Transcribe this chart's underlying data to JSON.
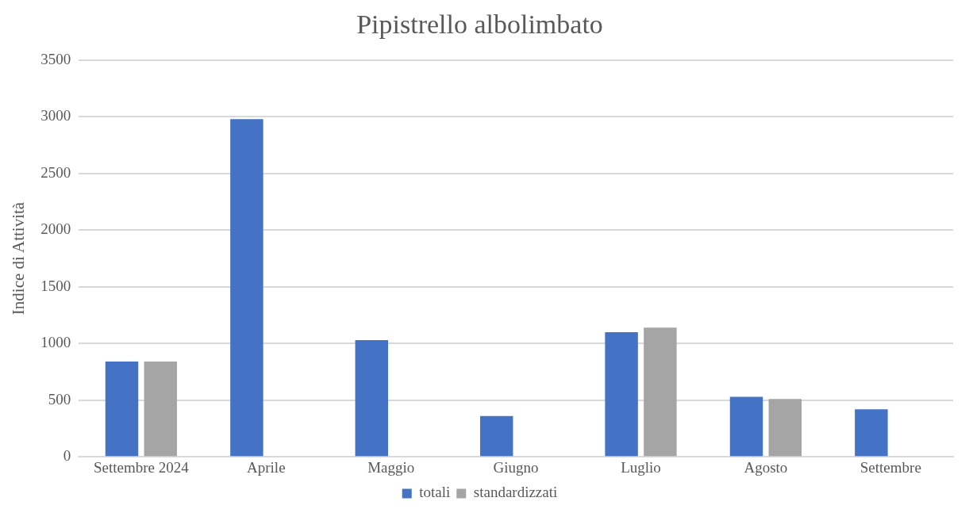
{
  "chart_data": {
    "type": "bar",
    "title": "Pipistrello albolimbato",
    "ylabel": "Indice di Attività",
    "categories": [
      "Settembre 2024",
      "Aprile",
      "Maggio",
      "Giugno",
      "Luglio",
      "Agosto",
      "Settembre"
    ],
    "series": [
      {
        "name": "totali",
        "color": "#4472c4",
        "values": [
          840,
          2980,
          1030,
          360,
          1100,
          530,
          420
        ]
      },
      {
        "name": "standardizzati",
        "color": "#a5a5a5",
        "values": [
          840,
          null,
          null,
          null,
          1140,
          510,
          null
        ]
      }
    ],
    "ylim": [
      0,
      3500
    ],
    "yticks": [
      0,
      500,
      1000,
      1500,
      2000,
      2500,
      3000,
      3500
    ],
    "grid": "y",
    "legend": "bottom"
  }
}
